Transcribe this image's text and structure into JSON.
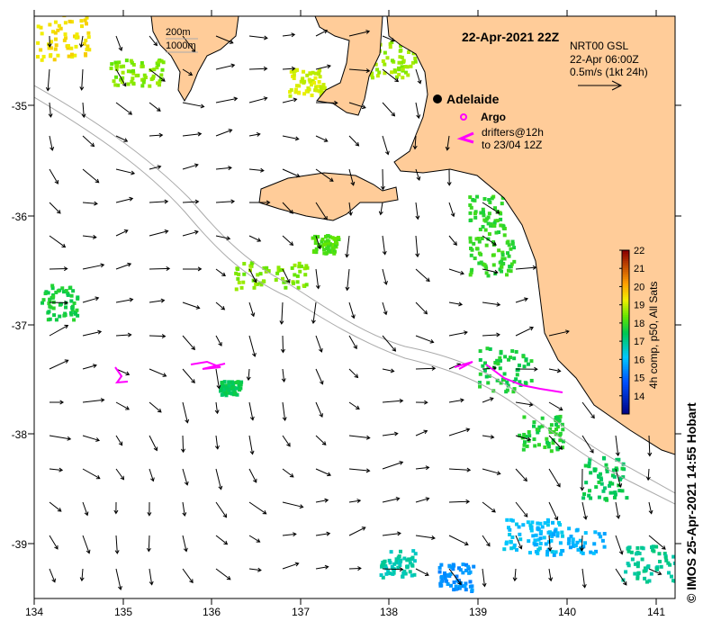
{
  "title": "22-Apr-2021 22Z",
  "model_info": {
    "line1": "NRT00 GSL",
    "line2": "22-Apr 06:00Z",
    "line3": "0.5m/s (1kt 24h)"
  },
  "depth_legend": {
    "line1": "200m",
    "line2": "1000m"
  },
  "city": "Adelaide",
  "argo_label": "Argo",
  "drifters_label": {
    "line1": "drifters@12h",
    "line2": "to 23/04 12Z"
  },
  "colorbar": {
    "label": "4h comp, p50, All Sats",
    "ticks": [
      "22",
      "21",
      "20",
      "19",
      "18",
      "17",
      "16",
      "15",
      "14"
    ],
    "min": 13,
    "max": 22
  },
  "x_ticks": [
    "134",
    "135",
    "136",
    "137",
    "138",
    "139",
    "140",
    "141"
  ],
  "y_ticks": [
    "-35",
    "-36",
    "-37",
    "-38",
    "-39"
  ],
  "credit": "© IMOS 25-Apr-2021 14:55 Hobart",
  "colors": {
    "land": "#ffcc99",
    "drifter": "#ff00ff"
  }
}
